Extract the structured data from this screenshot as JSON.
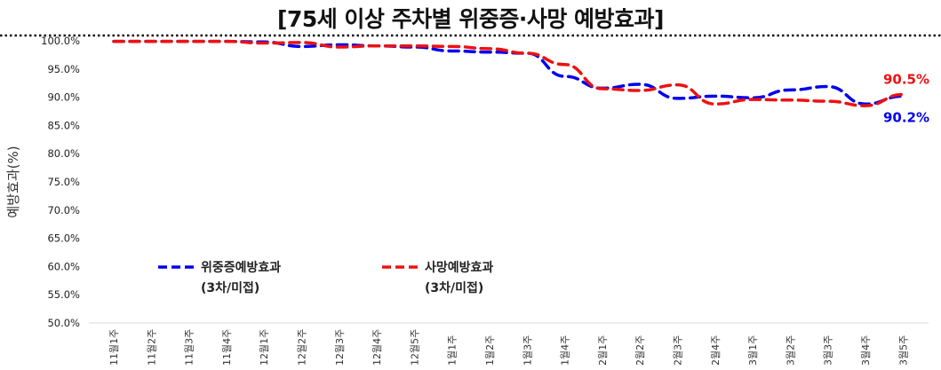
{
  "chart_data": {
    "type": "line",
    "title": "[75세 이상 주차별 위중증·사망 예방효과]",
    "xlabel": "",
    "ylabel": "예방효과(%)",
    "ylim": [
      50,
      100
    ],
    "yticks": [
      "50.0%",
      "55.0%",
      "60.0%",
      "65.0%",
      "70.0%",
      "75.0%",
      "80.0%",
      "85.0%",
      "90.0%",
      "95.0%",
      "100.0%"
    ],
    "grid": false,
    "legend_position": "bottom-left",
    "categories": [
      "11월1주",
      "11월2주",
      "11월3주",
      "11월4주",
      "12월1주",
      "12월2주",
      "12월3주",
      "12월4주",
      "12월5주",
      "1월1주",
      "1월2주",
      "1월3주",
      "1월4주",
      "2월1주",
      "2월2주",
      "2월3주",
      "2월4주",
      "3월1주",
      "3월2주",
      "3월3주",
      "3월4주",
      "3월5주"
    ],
    "series": [
      {
        "name": "위중증예방효과",
        "name_sub": "(3차/미접)",
        "color": "#0000ee",
        "style": "dashed",
        "values": [
          99.9,
          99.9,
          99.9,
          99.9,
          99.8,
          99.0,
          99.3,
          99.1,
          98.9,
          98.2,
          98.0,
          97.8,
          93.7,
          91.6,
          92.3,
          89.8,
          90.2,
          89.9,
          91.3,
          91.9,
          88.8,
          90.2
        ],
        "end_label": "90.2%"
      },
      {
        "name": "사망예방효과",
        "name_sub": "(3차/미접)",
        "color": "#ee1111",
        "style": "dashed",
        "values": [
          99.9,
          99.9,
          99.9,
          99.9,
          99.6,
          99.7,
          98.9,
          99.1,
          99.1,
          99.0,
          98.6,
          97.8,
          95.8,
          91.5,
          91.2,
          92.2,
          88.8,
          89.6,
          89.5,
          89.3,
          88.5,
          90.5
        ],
        "end_label": "90.5%"
      }
    ]
  }
}
